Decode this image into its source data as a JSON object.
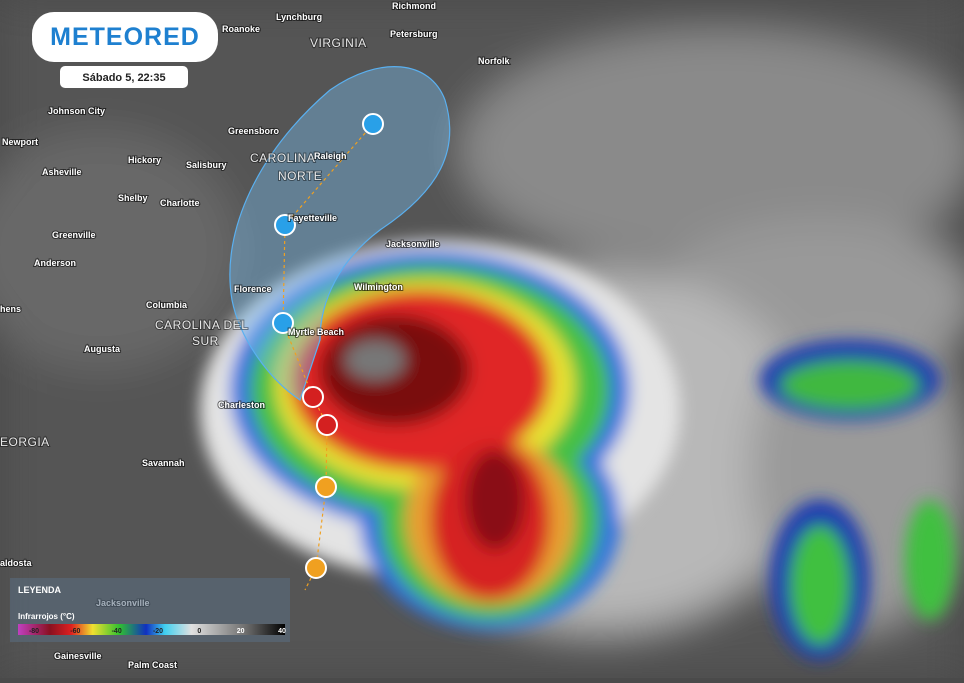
{
  "header": {
    "logo": "METEORED",
    "timestamp": "Sábado 5, 22:35"
  },
  "map": {
    "regions": [
      [
        "VIRGINIA"
      ],
      [
        "CAROLINA",
        "NORTE"
      ],
      [
        "CAROLINA DEL",
        "SUR"
      ],
      [
        "EORGIA"
      ]
    ],
    "cities": [
      "Lynchburg",
      "Richmond",
      "Roanoke",
      "Petersburg",
      "Norfolk",
      "Johnson City",
      "Greensboro",
      "Newport",
      "Raleigh",
      "Hickory",
      "Salisbury",
      "Asheville",
      "Shelby",
      "Charlotte",
      "Fayetteville",
      "Greenville",
      "Jacksonville",
      "Anderson",
      "Wilmington",
      "Florence",
      "Columbia",
      "hens",
      "Myrtle Beach",
      "Augusta",
      "Charleston",
      "Savannah",
      "aldosta",
      "Jacksonville",
      "Gainesville",
      "Palm Coast"
    ]
  },
  "legend": {
    "title": "LEYENDA",
    "subtitle": "Infrarrojos (°C)",
    "ticks": [
      -80,
      -60,
      -40,
      -20,
      0,
      20,
      40
    ]
  }
}
